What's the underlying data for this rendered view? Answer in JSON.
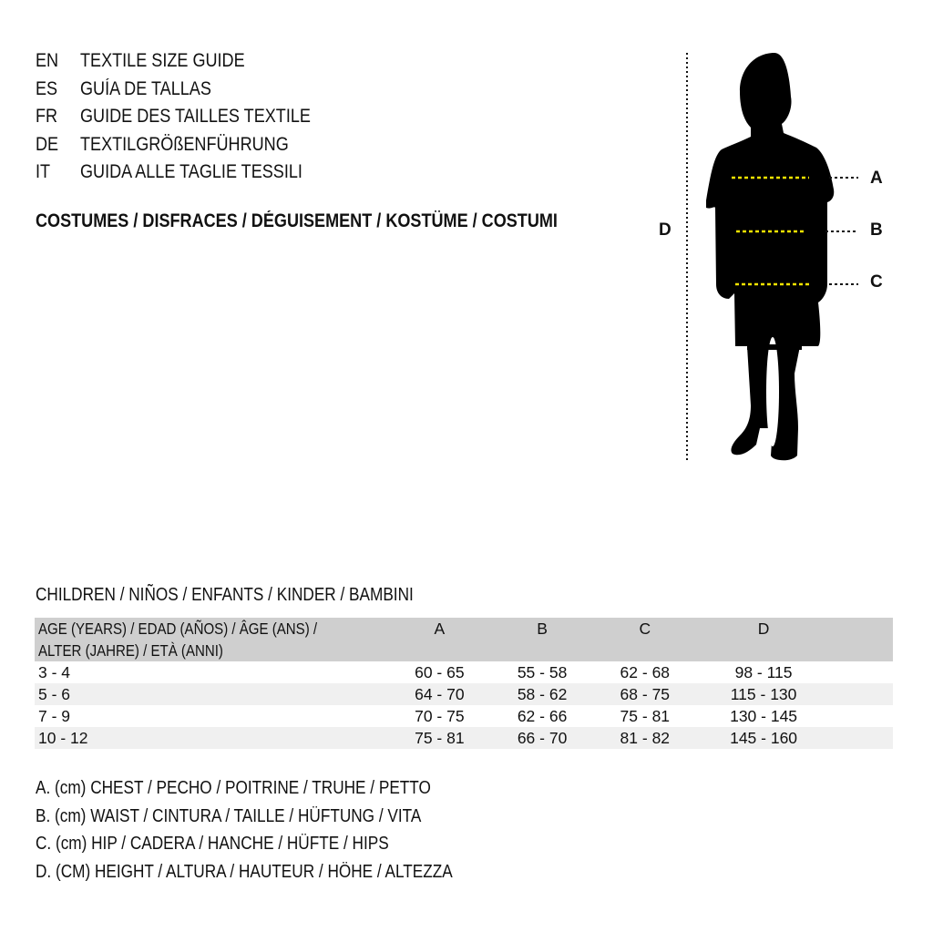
{
  "titles": [
    {
      "code": "EN",
      "text": "TEXTILE SIZE GUIDE"
    },
    {
      "code": "ES",
      "text": "GUÍA DE TALLAS"
    },
    {
      "code": "FR",
      "text": "GUIDE DES TAILLES TEXTILE"
    },
    {
      "code": "DE",
      "text": "TEXTILGRÖßENFÜHRUNG"
    },
    {
      "code": "IT",
      "text": "GUIDA ALLE TAGLIE TESSILI"
    }
  ],
  "category": "COSTUMES / DISFRACES / DÉGUISEMENT / KOSTÜME / COSTUMI",
  "diagram": {
    "labels": {
      "a": "A",
      "b": "B",
      "c": "C",
      "d": "D"
    },
    "marker_color": "#f5e400"
  },
  "group": "CHILDREN / NIÑOS / ENFANTS / KINDER / BAMBINI",
  "table": {
    "header_line1": "AGE (YEARS) / EDAD (AÑOS) / ÂGE (ANS) /",
    "header_line2": "ALTER (JAHRE) / ETÀ (ANNI)",
    "columns": [
      "A",
      "B",
      "C",
      "D"
    ],
    "rows": [
      [
        "3 - 4",
        "60 - 65",
        "55 - 58",
        "62 - 68",
        "98 - 115"
      ],
      [
        "5 - 6",
        "64 - 70",
        "58 - 62",
        "68 - 75",
        "115 - 130"
      ],
      [
        "7 - 9",
        "70 - 75",
        "62 - 66",
        "75 - 81",
        "130 - 145"
      ],
      [
        "10 - 12",
        "75 - 81",
        "66 - 70",
        "81 - 82",
        "145 - 160"
      ]
    ]
  },
  "legend": [
    "A. (cm) CHEST / PECHO / POITRINE / TRUHE / PETTO",
    "B. (cm) WAIST / CINTURA / TAILLE / HÜFTUNG / VITA",
    "C. (cm) HIP / CADERA / HANCHE / HÜFTE / HIPS",
    "D. (CM) HEIGHT / ALTURA / HAUTEUR / HÖHE / ALTEZZA"
  ]
}
